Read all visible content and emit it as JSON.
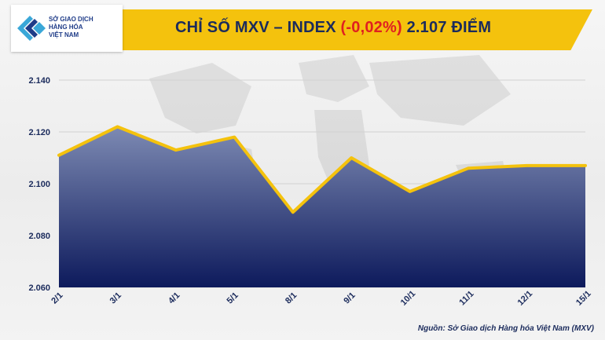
{
  "header": {
    "title_prefix": "CHỈ SỐ MXV – INDEX",
    "title_change": "(-0,02%)",
    "title_suffix": "2.107 ĐIỂM"
  },
  "logo": {
    "line1": "SỞ GIAO DỊCH",
    "line2": "HÀNG HÓA",
    "line3": "VIỆT NAM"
  },
  "footer": {
    "source": "Nguồn: Sở Giao dịch Hàng hóa Việt Nam (MXV)"
  },
  "colors": {
    "accent": "#f4c20d",
    "line": "#f4c20d",
    "area_top": "#7d8ab3",
    "area_bottom": "#0d1a5c",
    "title_text": "#1b2b5c",
    "change_text": "#e02020"
  },
  "chart_data": {
    "type": "area",
    "categories": [
      "2/1",
      "3/1",
      "4/1",
      "5/1",
      "8/1",
      "9/1",
      "10/1",
      "11/1",
      "12/1",
      "15/1"
    ],
    "values": [
      2111,
      2122,
      2113,
      2118,
      2089,
      2110,
      2097,
      2106,
      2107,
      2107
    ],
    "ylim": [
      2060,
      2140
    ],
    "yticks": [
      "2.060",
      "2.080",
      "2.100",
      "2.120",
      "2.140"
    ],
    "ytick_values": [
      2060,
      2080,
      2100,
      2120,
      2140
    ],
    "grid": true,
    "title": "CHỈ SỐ MXV – INDEX (-0,02%) 2.107 ĐIỂM"
  }
}
